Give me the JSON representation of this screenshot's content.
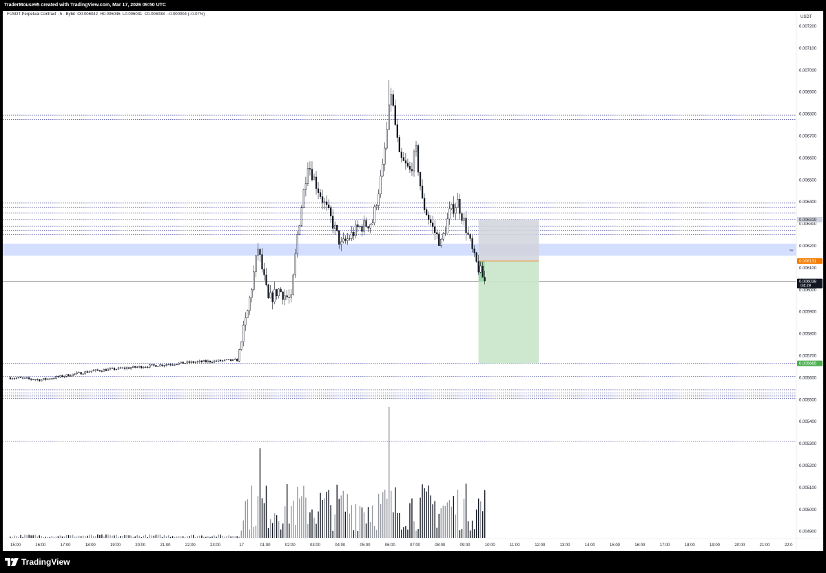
{
  "header": {
    "caption": "TraderMouse95 created with TradingView.com, Mar 17, 2026 09:50 UTC"
  },
  "legend": {
    "symbol": "FUSDT Perpetual Contract · 5 · Bybit",
    "open": "O0.006042",
    "high": "H0.006046",
    "low": "L0.006031",
    "close": "C0.006038",
    "change": "−0.000004 (−0.07%)"
  },
  "footer": {
    "logo_text": "TradingView"
  },
  "chart_data": {
    "type": "candlestick",
    "currency_label": "USDT",
    "y_ticks": [
      "0.007200",
      "0.007100",
      "0.007000",
      "0.006900",
      "0.006800",
      "0.006700",
      "0.006600",
      "0.006500",
      "0.006400",
      "0.006300",
      "0.006200",
      "0.006100",
      "0.006000",
      "0.005900",
      "0.005800",
      "0.005700",
      "0.005600",
      "0.005500",
      "0.005400",
      "0.005300",
      "0.005200",
      "0.005100",
      "0.005000",
      "0.004900"
    ],
    "x_ticks": [
      "15:00",
      "16:00",
      "17:00",
      "18:00",
      "19:00",
      "20:00",
      "21:00",
      "22:00",
      "23:00",
      "17",
      "01:00",
      "02:00",
      "03:00",
      "04:00",
      "05:00",
      "06:00",
      "07:00",
      "08:00",
      "09:00",
      "10:00",
      "11:00",
      "12:00",
      "13:00",
      "14:00",
      "15:00",
      "16:00",
      "17:00",
      "18:00",
      "19:00",
      "20:00",
      "21:00",
      "22:0"
    ],
    "price_labels": {
      "stop": "0.006319",
      "entry": "0.006131",
      "current": "0.006038",
      "countdown": "04:29",
      "target": "0.005665"
    },
    "zone_tag": "Sw",
    "colors": {
      "candle": "#131722",
      "level_line": "#5d5fa8",
      "zone_fill": "#cdd9ff",
      "stop_fill": "#d1d4dc",
      "target_fill": "#c8e6c9",
      "entry_tag": "#f57c00",
      "target_tag": "#4caf50"
    },
    "key_points": [
      {
        "time": "14:45",
        "price": 0.0056
      },
      {
        "time": "16:00",
        "price": 0.00559
      },
      {
        "time": "18:00",
        "price": 0.00563
      },
      {
        "time": "20:00",
        "price": 0.00565
      },
      {
        "time": "22:00",
        "price": 0.00567
      },
      {
        "time": "23:50",
        "price": 0.00568
      },
      {
        "time": "00:15",
        "price": 0.0059
      },
      {
        "time": "00:40",
        "price": 0.00619
      },
      {
        "time": "01:05",
        "price": 0.00595
      },
      {
        "time": "01:30",
        "price": 0.006
      },
      {
        "time": "02:00",
        "price": 0.00595
      },
      {
        "time": "02:15",
        "price": 0.00625
      },
      {
        "time": "02:40",
        "price": 0.00658
      },
      {
        "time": "03:00",
        "price": 0.00648
      },
      {
        "time": "03:40",
        "price": 0.0063
      },
      {
        "time": "04:00",
        "price": 0.0062
      },
      {
        "time": "04:40",
        "price": 0.00628
      },
      {
        "time": "05:15",
        "price": 0.00631
      },
      {
        "time": "05:40",
        "price": 0.00655
      },
      {
        "time": "06:00",
        "price": 0.0069
      },
      {
        "time": "06:20",
        "price": 0.0066
      },
      {
        "time": "06:45",
        "price": 0.00654
      },
      {
        "time": "07:00",
        "price": 0.00663
      },
      {
        "time": "07:15",
        "price": 0.0064
      },
      {
        "time": "07:40",
        "price": 0.00628
      },
      {
        "time": "08:00",
        "price": 0.00621
      },
      {
        "time": "08:20",
        "price": 0.00635
      },
      {
        "time": "08:40",
        "price": 0.0064
      },
      {
        "time": "09:00",
        "price": 0.00628
      },
      {
        "time": "09:20",
        "price": 0.00614
      },
      {
        "time": "09:45",
        "price": 0.006038
      }
    ],
    "levels": [
      0.006775,
      0.006795,
      0.006395,
      0.006375,
      0.00635,
      0.00632,
      0.00629,
      0.00627,
      0.006252,
      0.005665,
      0.005606,
      0.005545,
      0.00553,
      0.00552,
      0.005513,
      0.005505,
      0.00531
    ]
  }
}
